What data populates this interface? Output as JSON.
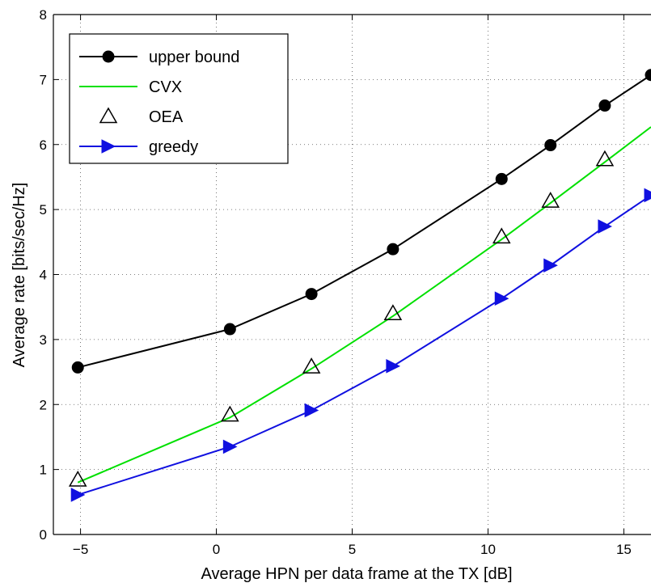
{
  "chart_data": {
    "type": "line",
    "xlabel": "Average HPN per data frame at the TX [dB]",
    "ylabel": "Average rate [bits/sec/Hz]",
    "xlim": [
      -6,
      16
    ],
    "ylim": [
      0,
      8
    ],
    "xticks": [
      -5,
      0,
      5,
      10,
      15
    ],
    "yticks": [
      0,
      1,
      2,
      3,
      4,
      5,
      6,
      7,
      8
    ],
    "grid": true,
    "legend_position": "top-left",
    "series": [
      {
        "name": "upper bound",
        "color": "#000000",
        "marker": "circle-filled",
        "x": [
          -5.1,
          0.5,
          3.5,
          6.5,
          10.5,
          12.3,
          14.3,
          16
        ],
        "y": [
          2.57,
          3.16,
          3.7,
          4.39,
          5.47,
          5.99,
          6.6,
          7.07
        ]
      },
      {
        "name": "CVX",
        "color": "#00e000",
        "marker": "none",
        "x": [
          -5.1,
          0.5,
          3.5,
          6.5,
          10.5,
          12.3,
          14.3,
          16
        ],
        "y": [
          0.8,
          1.8,
          2.55,
          3.36,
          4.54,
          5.1,
          5.73,
          6.27
        ]
      },
      {
        "name": "OEA",
        "color": "#000000",
        "marker": "triangle-open",
        "x": [
          -5.1,
          0.5,
          3.5,
          6.5,
          10.5,
          12.3,
          14.3
        ],
        "y": [
          0.84,
          1.84,
          2.58,
          3.4,
          4.58,
          5.13,
          5.77
        ]
      },
      {
        "name": "greedy",
        "color": "#1010e0",
        "marker": "triangle-right-filled",
        "x": [
          -5.1,
          0.5,
          3.5,
          6.5,
          10.5,
          12.3,
          14.3,
          16
        ],
        "y": [
          0.61,
          1.35,
          1.91,
          2.59,
          3.63,
          4.14,
          4.74,
          5.22
        ]
      }
    ]
  }
}
